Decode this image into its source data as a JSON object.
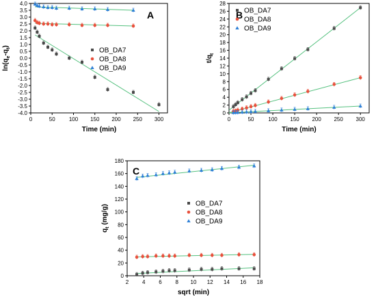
{
  "colors": {
    "OB_DA7": "#4a4a4a",
    "OB_DA8": "#e8503c",
    "OB_DA9": "#2d7fd6",
    "fit": "#54c07e"
  },
  "chart_data": [
    {
      "type": "scatter",
      "panel": "A",
      "xlabel": "Time (min)",
      "ylabel": "ln(qe-qt)",
      "xlim": [
        0,
        320
      ],
      "ylim": [
        -4.0,
        4.0
      ],
      "xticks": [
        0,
        50,
        100,
        150,
        200,
        250,
        300
      ],
      "yticks": [
        -4.0,
        -3.5,
        -3.0,
        -2.5,
        -2.0,
        -1.5,
        -1.0,
        -0.5,
        0.0,
        0.5,
        1.0,
        1.5,
        2.0,
        2.5,
        3.0,
        3.5,
        4.0
      ],
      "legend_position": "center-right",
      "series": [
        {
          "name": "OB_DA7",
          "marker": "square",
          "x": [
            10,
            15,
            20,
            30,
            40,
            50,
            60,
            90,
            120,
            150,
            180,
            240,
            300
          ],
          "y": [
            2.2,
            1.9,
            1.6,
            1.1,
            0.8,
            0.6,
            0.3,
            0.0,
            -0.3,
            -1.4,
            -2.3,
            -2.5,
            -3.4
          ],
          "fit": [
            [
              10,
              1.7
            ],
            [
              300,
              -3.9
            ]
          ]
        },
        {
          "name": "OB_DA8",
          "marker": "circle",
          "x": [
            10,
            15,
            20,
            30,
            40,
            50,
            60,
            90,
            120,
            150,
            180,
            240
          ],
          "y": [
            2.75,
            2.6,
            2.55,
            2.5,
            2.5,
            2.45,
            2.45,
            2.45,
            2.4,
            2.4,
            2.4,
            2.35
          ],
          "fit": [
            [
              10,
              2.55
            ],
            [
              240,
              2.35
            ]
          ]
        },
        {
          "name": "OB_DA9",
          "marker": "triangle",
          "x": [
            10,
            15,
            20,
            30,
            40,
            50,
            60,
            90,
            120,
            150,
            180,
            240
          ],
          "y": [
            3.95,
            3.85,
            3.8,
            3.75,
            3.7,
            3.7,
            3.65,
            3.65,
            3.6,
            3.6,
            3.55,
            3.5
          ],
          "fit": [
            [
              10,
              3.75
            ],
            [
              240,
              3.5
            ]
          ]
        }
      ]
    },
    {
      "type": "scatter",
      "panel": "B",
      "xlabel": "Time (min)",
      "ylabel": "t/qt",
      "xlim": [
        0,
        320
      ],
      "ylim": [
        0,
        28
      ],
      "xticks": [
        0,
        50,
        100,
        150,
        200,
        250,
        300
      ],
      "yticks": [
        0,
        2,
        4,
        6,
        8,
        10,
        12,
        14,
        16,
        18,
        20,
        22,
        24,
        26,
        28
      ],
      "legend_position": "top-left",
      "series": [
        {
          "name": "OB_DA7",
          "marker": "square",
          "x": [
            10,
            15,
            20,
            30,
            40,
            50,
            60,
            90,
            120,
            150,
            180,
            240,
            300
          ],
          "y": [
            1.6,
            2.1,
            2.6,
            3.4,
            4.1,
            5.0,
            5.7,
            8.6,
            11.3,
            13.9,
            16.2,
            21.6,
            26.9
          ],
          "fit": [
            [
              0,
              0.7
            ],
            [
              300,
              26.9
            ]
          ]
        },
        {
          "name": "OB_DA8",
          "marker": "circle",
          "x": [
            10,
            15,
            20,
            30,
            40,
            50,
            60,
            90,
            120,
            150,
            180,
            240,
            300
          ],
          "y": [
            0.4,
            0.5,
            0.7,
            1.0,
            1.3,
            1.6,
            1.9,
            2.8,
            3.7,
            4.6,
            5.5,
            7.3,
            9.0
          ],
          "fit": [
            [
              0,
              0.05
            ],
            [
              300,
              9.0
            ]
          ]
        },
        {
          "name": "OB_DA9",
          "marker": "triangle",
          "x": [
            10,
            15,
            20,
            30,
            40,
            50,
            60,
            90,
            120,
            150,
            180,
            240,
            300
          ],
          "y": [
            0.07,
            0.1,
            0.13,
            0.19,
            0.25,
            0.31,
            0.37,
            0.55,
            0.73,
            0.9,
            1.07,
            1.42,
            1.75
          ],
          "fit": [
            [
              0,
              0.02
            ],
            [
              300,
              1.75
            ]
          ]
        }
      ]
    },
    {
      "type": "scatter",
      "panel": "C",
      "xlabel": "sqrt (min)",
      "ylabel": "qt (mg/g)",
      "xlim": [
        2,
        18
      ],
      "ylim": [
        0,
        180
      ],
      "xticks": [
        2,
        4,
        6,
        8,
        10,
        12,
        14,
        16,
        18
      ],
      "yticks": [
        0,
        20,
        40,
        60,
        80,
        100,
        120,
        140,
        160,
        180
      ],
      "legend_position": "center",
      "series": [
        {
          "name": "OB_DA7",
          "marker": "square",
          "x": [
            3.16,
            3.87,
            4.47,
            5.48,
            6.32,
            7.07,
            7.75,
            9.49,
            10.95,
            12.25,
            13.42,
            15.49,
            17.32
          ],
          "y": [
            2,
            4,
            5,
            6,
            7,
            8,
            8,
            9,
            10,
            10,
            11,
            11,
            11
          ],
          "fit": [
            [
              3.16,
              3.5
            ],
            [
              17.32,
              12.5
            ]
          ]
        },
        {
          "name": "OB_DA8",
          "marker": "circle",
          "x": [
            3.16,
            3.87,
            4.47,
            5.48,
            6.32,
            7.07,
            7.75,
            9.49,
            10.95,
            12.25,
            13.42,
            15.49,
            17.32
          ],
          "y": [
            29,
            30,
            30,
            31,
            31,
            31,
            31,
            32,
            32,
            32,
            32,
            33,
            33
          ],
          "fit": [
            [
              3.16,
              29.5
            ],
            [
              17.32,
              33.5
            ]
          ]
        },
        {
          "name": "OB_DA9",
          "marker": "triangle",
          "x": [
            3.16,
            3.87,
            4.47,
            5.48,
            6.32,
            7.07,
            7.75,
            9.49,
            10.95,
            12.25,
            13.42,
            15.49,
            17.32
          ],
          "y": [
            152,
            156,
            157,
            158,
            160,
            161,
            162,
            164,
            165,
            166,
            168,
            170,
            172
          ],
          "fit": [
            [
              3.16,
              154
            ],
            [
              17.32,
              173
            ]
          ]
        }
      ]
    }
  ]
}
